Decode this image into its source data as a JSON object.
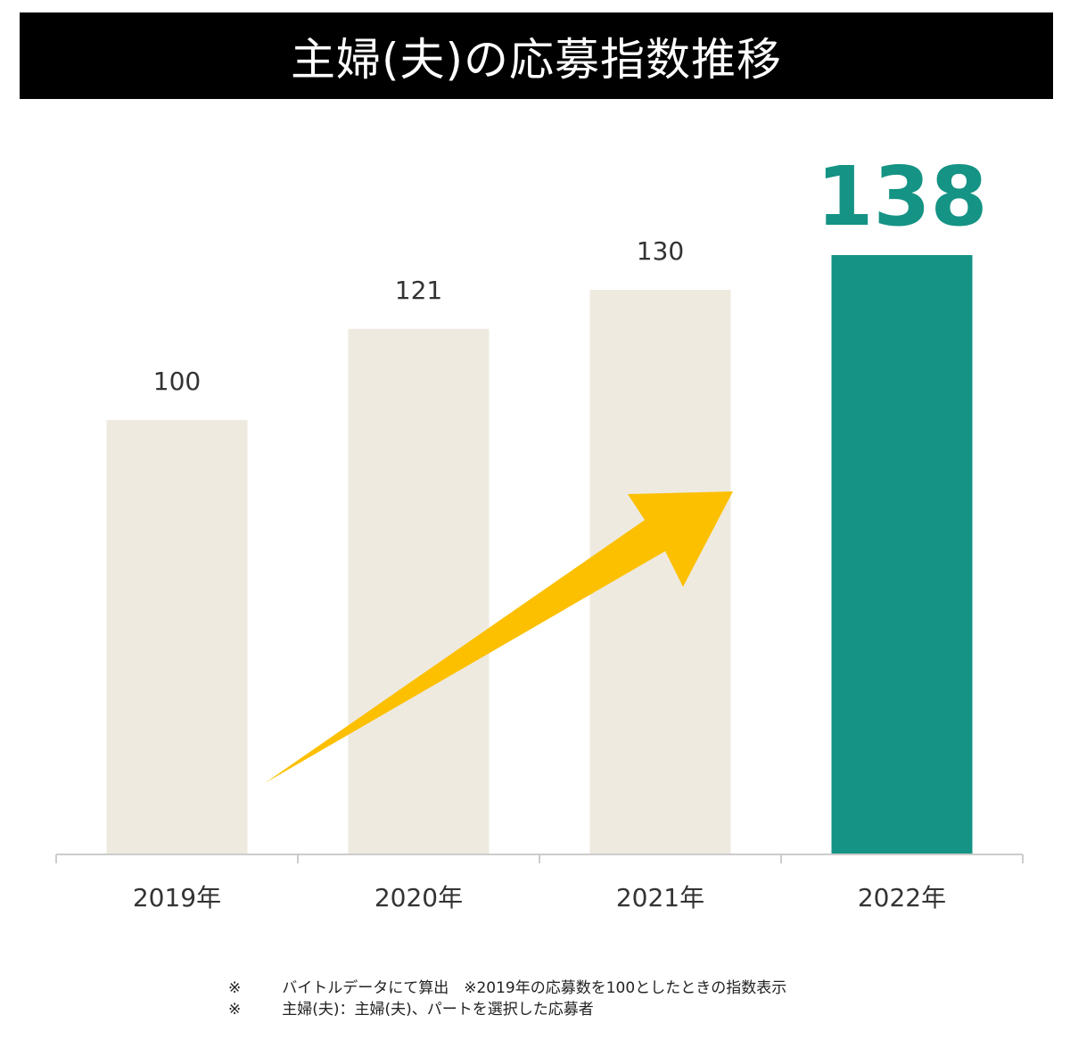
{
  "chart_data": {
    "type": "bar",
    "title": "主婦(夫)の応募指数推移",
    "categories": [
      "2019年",
      "2020年",
      "2021年",
      "2022年"
    ],
    "values": [
      100,
      121,
      130,
      138
    ],
    "value_labels": [
      "100",
      "121",
      "130",
      "138"
    ],
    "ylim": [
      0,
      138
    ],
    "grid": false,
    "legend": "none",
    "highlight_index": 3,
    "xlabel": "",
    "ylabel": ""
  },
  "colors": {
    "bar": "#EEEAE0",
    "highlight_bar": "#159384",
    "arrow": "#FCC000",
    "axis": "#CCCCCC",
    "label": "#333333"
  },
  "notes": [
    "※\t　バイトルデータにて算出　※2019年の応募数を100としたときの指数表示",
    "※\t　主婦(夫)：主婦(夫)、パートを選択した応募者"
  ]
}
